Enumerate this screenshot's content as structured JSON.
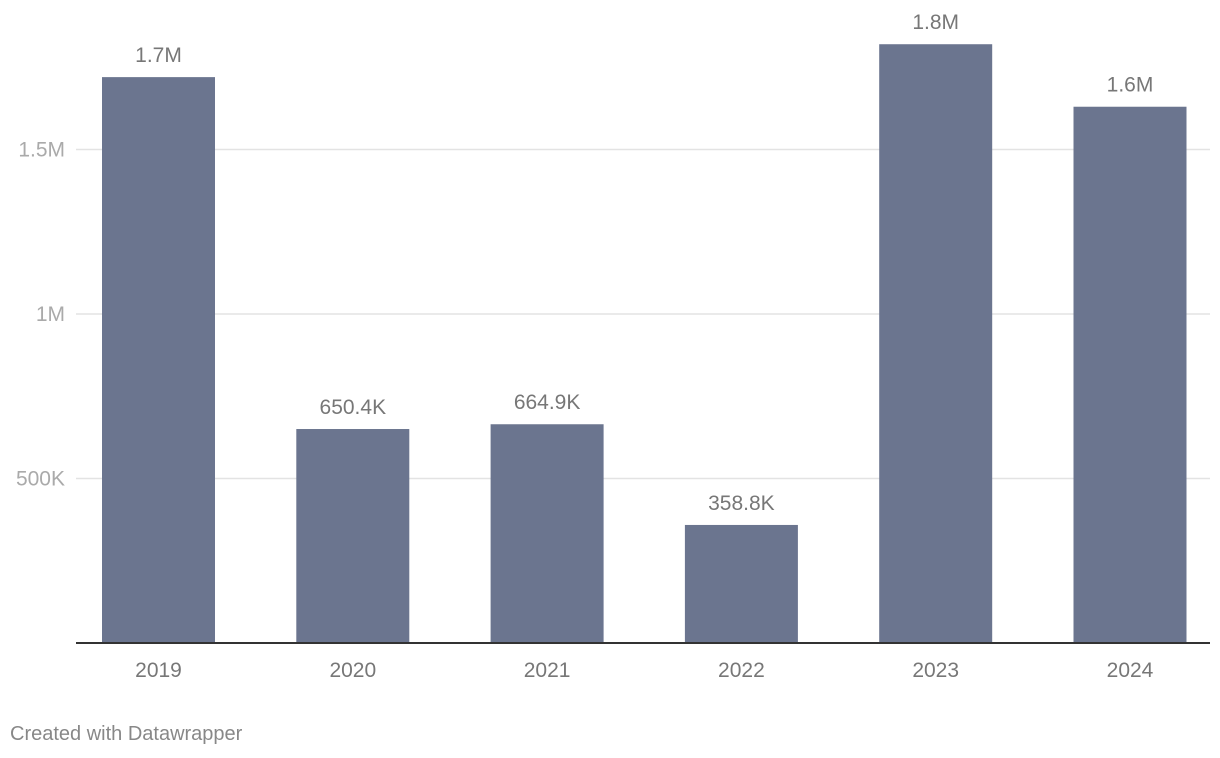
{
  "chart_data": {
    "type": "bar",
    "title": "",
    "xlabel": "",
    "ylabel": "",
    "categories": [
      "2019",
      "2020",
      "2021",
      "2022",
      "2023",
      "2024"
    ],
    "values": [
      1720000,
      650400,
      664900,
      358800,
      1820000,
      1630000
    ],
    "value_labels": [
      "1.7M",
      "650.4K",
      "664.9K",
      "358.8K",
      "1.8M",
      "1.6M"
    ],
    "ylim": [
      0,
      1820000
    ],
    "y_ticks": [
      {
        "value": 500000,
        "label": "500K"
      },
      {
        "value": 1000000,
        "label": "1M"
      },
      {
        "value": 1500000,
        "label": "1.5M"
      }
    ],
    "grid": true,
    "colors": {
      "bar": "#6b758f",
      "grid": "#e3e3e3",
      "axis": "#333333",
      "tick_label": "#aaaaaa",
      "category_label": "#777777",
      "value_label": "#777777"
    }
  },
  "footer": {
    "credit": "Created with Datawrapper"
  }
}
